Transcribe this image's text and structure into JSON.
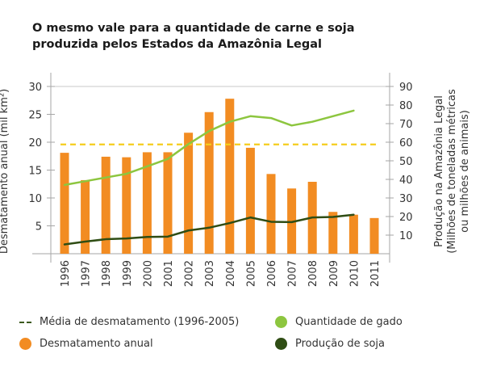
{
  "title_lines": [
    "O mesmo vale para a quantidade de carne e soja",
    "produzida pelos Estados da Amazônia Legal"
  ],
  "colors": {
    "bar": "#f28c22",
    "average_line": "#f5cd1c",
    "average_legend": "#3c5a1e",
    "cattle": "#8dc63f",
    "soy": "#2f4d14",
    "axis": "#a6a6a6",
    "text": "#333333"
  },
  "legend": {
    "average": "Média de desmatamento (1996-2005)",
    "deforestation": "Desmatamento anual",
    "cattle": "Quantidade de gado",
    "soy": "Produção de soja"
  },
  "chart_data": {
    "type": "bar",
    "title": "O mesmo vale para a quantidade de carne e soja produzida pelos Estados da Amazônia Legal",
    "categories": [
      "1996",
      "1997",
      "1998",
      "1999",
      "2000",
      "2001",
      "2002",
      "2003",
      "2004",
      "2005",
      "2006",
      "2007",
      "2008",
      "2009",
      "2010",
      "2011"
    ],
    "ylabel": "Desmatamento anual (mil km²)",
    "ylim": [
      0,
      30
    ],
    "yticks": [
      5,
      10,
      15,
      20,
      25,
      30
    ],
    "y2label_lines": [
      "Produção na Amazônia Legal",
      "(Milhões de toneladas métricas",
      "ou milhões de animais)"
    ],
    "y2lim": [
      0,
      90
    ],
    "y2ticks": [
      10,
      20,
      30,
      40,
      50,
      60,
      70,
      80,
      90
    ],
    "grid": "top-line-only",
    "legend_position": "bottom",
    "series": [
      {
        "name": "Desmatamento anual",
        "type": "bar",
        "axis": "left",
        "values": [
          18.1,
          13.2,
          17.4,
          17.3,
          18.2,
          18.2,
          21.7,
          25.4,
          27.8,
          19.0,
          14.3,
          11.7,
          12.9,
          7.5,
          7.0,
          6.4
        ]
      },
      {
        "name": "Média de desmatamento (1996-2005)",
        "type": "line-dashed",
        "axis": "left",
        "value": 19.6,
        "span": [
          "1996",
          "2011"
        ]
      },
      {
        "name": "Quantidade de gado",
        "type": "line",
        "axis": "right",
        "values": [
          37,
          39,
          41,
          43,
          47,
          51,
          59,
          66,
          71,
          74,
          73,
          69,
          71,
          74,
          77,
          null
        ]
      },
      {
        "name": "Produção de soja",
        "type": "line",
        "axis": "right",
        "values": [
          5,
          6.5,
          7.8,
          8.2,
          9,
          9.2,
          12.5,
          14,
          16.5,
          19.5,
          17.2,
          17,
          19.5,
          19.8,
          21,
          null
        ]
      }
    ]
  }
}
